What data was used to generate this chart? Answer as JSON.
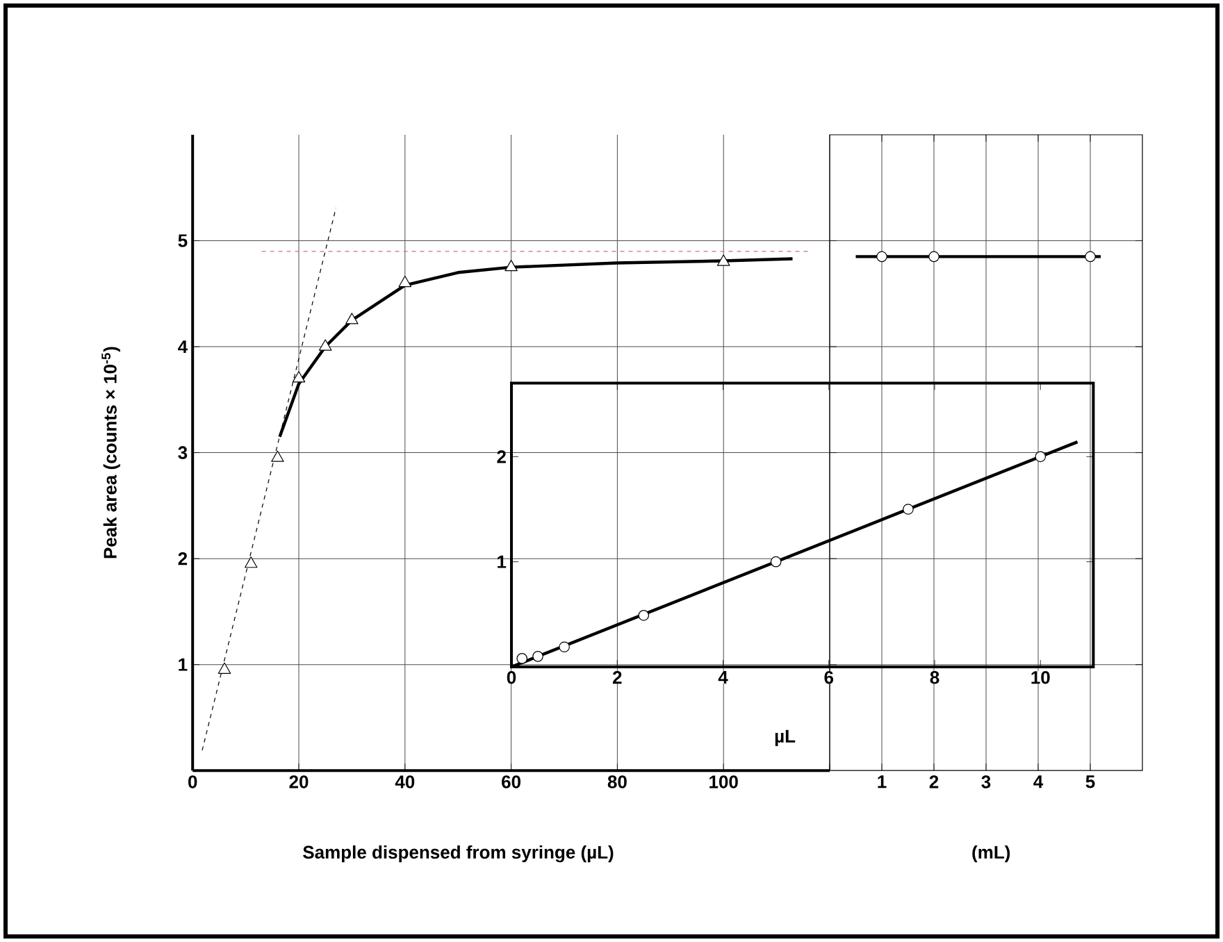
{
  "chart_data": [
    {
      "type": "line",
      "xlabel": "Sample dispensed from syringe (µL)",
      "ylabel": "Peak area (counts × 10$^{-5}$)",
      "xlim": [
        0,
        120
      ],
      "ylim": [
        0,
        6
      ],
      "xticks": [
        0,
        20,
        40,
        60,
        80,
        100,
        {
          "value": 120,
          "label": null
        }
      ],
      "yticks": [
        1,
        2,
        3,
        4,
        5
      ],
      "grid": true,
      "series": [
        {
          "type": "line",
          "line_style": "dashed",
          "color": "#000000",
          "x": [
            1.8,
            27
          ],
          "values": [
            0.19,
            5.31
          ]
        },
        {
          "type": "line",
          "line_style": "dashed",
          "color": "#d07080",
          "x": [
            13,
            116
          ],
          "values": [
            4.9,
            4.9
          ]
        },
        {
          "type": "line",
          "line_style": "solid",
          "color": "#000000",
          "x": [
            16.4,
            20,
            25,
            30,
            40,
            50,
            60,
            80,
            100,
            113
          ],
          "values": [
            3.15,
            3.65,
            4.0,
            4.25,
            4.58,
            4.7,
            4.75,
            4.79,
            4.81,
            4.83
          ]
        },
        {
          "type": "scatter",
          "marker": "triangle",
          "color": "#000000",
          "x": [
            6,
            11,
            16,
            20,
            25,
            30,
            40,
            60,
            100
          ],
          "values": [
            0.95,
            1.95,
            2.95,
            3.7,
            4.0,
            4.25,
            4.6,
            4.75,
            4.8
          ]
        }
      ]
    },
    {
      "type": "line",
      "xlabel": "(mL)",
      "xlim": [
        0,
        6
      ],
      "ylim": [
        0,
        6
      ],
      "xticks": [
        1,
        2,
        3,
        4,
        5
      ],
      "yticks": [
        1,
        2,
        3,
        4,
        5
      ],
      "grid": true,
      "tick_labels": "x",
      "series": [
        {
          "type": "line",
          "line_style": "solid",
          "color": "#000000",
          "x": [
            0.5,
            5.2
          ],
          "values": [
            4.85,
            4.85
          ]
        },
        {
          "type": "scatter",
          "marker": "circle",
          "color": "#000000",
          "x": [
            1,
            2,
            5
          ],
          "values": [
            4.85,
            4.85,
            4.85
          ]
        }
      ]
    },
    {
      "type": "line",
      "xlabel": "µL",
      "xlim": [
        0,
        11
      ],
      "ylim": [
        0,
        2.7
      ],
      "xticks": [
        0,
        2,
        4,
        6,
        8,
        10
      ],
      "yticks": [
        1,
        2
      ],
      "series": [
        {
          "type": "line",
          "line_style": "solid",
          "color": "#000000",
          "x": [
            0,
            10.7
          ],
          "values": [
            0,
            2.14
          ]
        },
        {
          "type": "scatter",
          "marker": "circle",
          "color": "#000000",
          "x": [
            0.2,
            0.5,
            1,
            2.5,
            5,
            7.5,
            10
          ],
          "values": [
            0.08,
            0.1,
            0.19,
            0.49,
            1.0,
            1.5,
            2.0
          ]
        }
      ]
    }
  ]
}
